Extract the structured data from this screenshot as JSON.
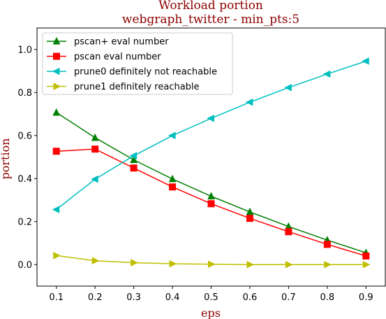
{
  "chart_data": {
    "type": "line",
    "title": "Workload portion",
    "subtitle": "webgraph_twitter - min_pts:5",
    "xlabel": "eps",
    "ylabel": "portion",
    "x": [
      0.1,
      0.2,
      0.3,
      0.4,
      0.5,
      0.6,
      0.7,
      0.8,
      0.9
    ],
    "xticks": [
      "0.1",
      "0.2",
      "0.3",
      "0.4",
      "0.5",
      "0.6",
      "0.7",
      "0.8",
      "0.9"
    ],
    "yticks": [
      "0.0",
      "0.2",
      "0.4",
      "0.6",
      "0.8",
      "1.0"
    ],
    "xlim": [
      0.05,
      0.95
    ],
    "ylim": [
      -0.1,
      1.1
    ],
    "grid": false,
    "legend_position": "top-left",
    "series": [
      {
        "name": "pscan+ eval number",
        "color": "#008000",
        "marker": "triangle-up",
        "values": [
          0.707,
          0.59,
          0.487,
          0.398,
          0.318,
          0.245,
          0.177,
          0.114,
          0.055
        ]
      },
      {
        "name": "pscan eval number",
        "color": "#ff0000",
        "marker": "square",
        "values": [
          0.527,
          0.537,
          0.449,
          0.361,
          0.283,
          0.215,
          0.153,
          0.094,
          0.04
        ]
      },
      {
        "name": "prune0 definitely not reachable",
        "color": "#00bfbf",
        "marker": "triangle-left",
        "values": [
          0.256,
          0.397,
          0.506,
          0.6,
          0.68,
          0.755,
          0.823,
          0.886,
          0.946
        ]
      },
      {
        "name": "prune1 definitely reachable",
        "color": "#bfbf00",
        "marker": "triangle-right",
        "values": [
          0.042,
          0.018,
          0.009,
          0.004,
          0.002,
          0.0,
          0.0,
          0.0,
          0.0
        ]
      }
    ]
  }
}
